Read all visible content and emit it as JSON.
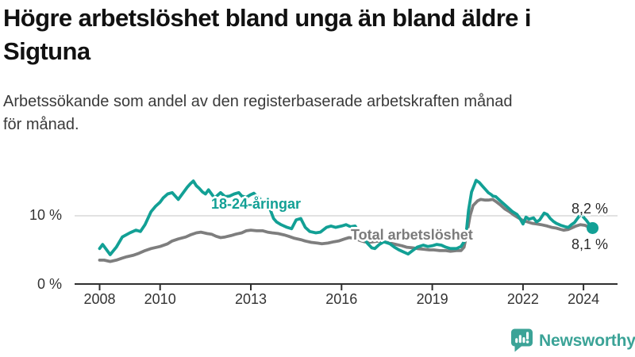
{
  "title": {
    "lines": [
      "Högre arbetslöshet bland unga än bland äldre i",
      "Sigtuna"
    ]
  },
  "subtitle": {
    "lines": [
      "Arbetssökande som andel av den registerbaserade arbetskraften månad",
      "för månad."
    ]
  },
  "footer": {
    "brand": "Newsworthy"
  },
  "colors": {
    "youth_line": "#12a095",
    "total_line": "#7e7e7e",
    "gridline": "#d9d9d9",
    "axis": "#2f2f2f",
    "tick_text": "#333333",
    "brand": "#3ba397"
  },
  "chart_data": {
    "type": "line",
    "title": "Högre arbetslöshet bland unga än bland äldre i Sigtuna",
    "subtitle": "Arbetssökande som andel av den registerbaserade arbetskraften månad för månad.",
    "x_axis": {
      "ticks": [
        2008,
        2010,
        2013,
        2016,
        2019,
        2022,
        2024
      ],
      "range": [
        2008,
        2024.4
      ]
    },
    "y_axis": {
      "labels": [
        "0 %",
        "10 %"
      ],
      "gridline_at": 10,
      "range": [
        0,
        16
      ],
      "unit": "%"
    },
    "legend_position": "inline-labels",
    "grid": "single-horizontal-line-at-10",
    "series": [
      {
        "name": "18-24-åringar",
        "color": "#12a095",
        "end_label": "8,2 %",
        "end_value": 8.2,
        "points": [
          [
            2008.0,
            5.2
          ],
          [
            2008.1,
            5.8
          ],
          [
            2008.35,
            4.3
          ],
          [
            2008.55,
            5.4
          ],
          [
            2008.75,
            6.9
          ],
          [
            2009.0,
            7.5
          ],
          [
            2009.2,
            7.9
          ],
          [
            2009.35,
            7.7
          ],
          [
            2009.5,
            8.7
          ],
          [
            2009.7,
            10.6
          ],
          [
            2009.85,
            11.4
          ],
          [
            2010.0,
            12.0
          ],
          [
            2010.1,
            12.6
          ],
          [
            2010.25,
            13.2
          ],
          [
            2010.4,
            13.4
          ],
          [
            2010.5,
            12.9
          ],
          [
            2010.6,
            12.4
          ],
          [
            2010.75,
            13.3
          ],
          [
            2010.9,
            14.2
          ],
          [
            2011.0,
            14.7
          ],
          [
            2011.1,
            15.1
          ],
          [
            2011.2,
            14.4
          ],
          [
            2011.3,
            14.0
          ],
          [
            2011.4,
            13.5
          ],
          [
            2011.5,
            13.2
          ],
          [
            2011.6,
            13.8
          ],
          [
            2011.7,
            13.2
          ],
          [
            2011.8,
            12.6
          ],
          [
            2011.9,
            13.0
          ],
          [
            2012.0,
            13.4
          ],
          [
            2012.15,
            12.8
          ],
          [
            2012.3,
            12.9
          ],
          [
            2012.45,
            13.2
          ],
          [
            2012.6,
            13.4
          ],
          [
            2012.7,
            12.9
          ],
          [
            2012.85,
            12.7
          ],
          [
            2013.0,
            13.1
          ],
          [
            2013.1,
            13.3
          ],
          [
            2013.25,
            12.7
          ],
          [
            2013.4,
            12.1
          ],
          [
            2013.5,
            11.6
          ],
          [
            2013.65,
            10.8
          ],
          [
            2013.75,
            9.6
          ],
          [
            2013.85,
            9.1
          ],
          [
            2014.0,
            8.7
          ],
          [
            2014.2,
            8.3
          ],
          [
            2014.35,
            8.1
          ],
          [
            2014.5,
            9.4
          ],
          [
            2014.65,
            9.6
          ],
          [
            2014.8,
            8.3
          ],
          [
            2014.95,
            7.7
          ],
          [
            2015.15,
            7.5
          ],
          [
            2015.3,
            7.6
          ],
          [
            2015.5,
            8.3
          ],
          [
            2015.65,
            8.5
          ],
          [
            2015.8,
            8.3
          ],
          [
            2016.0,
            8.5
          ],
          [
            2016.15,
            8.7
          ],
          [
            2016.3,
            8.4
          ],
          [
            2016.45,
            8.5
          ],
          [
            2016.55,
            7.8
          ],
          [
            2016.7,
            7.0
          ],
          [
            2016.85,
            6.0
          ],
          [
            2017.0,
            5.3
          ],
          [
            2017.1,
            5.2
          ],
          [
            2017.25,
            5.8
          ],
          [
            2017.4,
            6.2
          ],
          [
            2017.6,
            5.9
          ],
          [
            2017.75,
            5.4
          ],
          [
            2017.9,
            5.0
          ],
          [
            2018.05,
            4.7
          ],
          [
            2018.2,
            4.4
          ],
          [
            2018.35,
            4.9
          ],
          [
            2018.5,
            5.4
          ],
          [
            2018.7,
            5.7
          ],
          [
            2018.85,
            5.5
          ],
          [
            2019.0,
            5.6
          ],
          [
            2019.15,
            5.8
          ],
          [
            2019.3,
            5.7
          ],
          [
            2019.45,
            5.4
          ],
          [
            2019.6,
            5.2
          ],
          [
            2019.8,
            5.2
          ],
          [
            2019.95,
            5.5
          ],
          [
            2020.1,
            6.5
          ],
          [
            2020.2,
            10.8
          ],
          [
            2020.3,
            13.5
          ],
          [
            2020.4,
            14.6
          ],
          [
            2020.45,
            15.2
          ],
          [
            2020.55,
            14.9
          ],
          [
            2020.65,
            14.4
          ],
          [
            2020.75,
            13.9
          ],
          [
            2020.85,
            13.4
          ],
          [
            2020.95,
            13.1
          ],
          [
            2021.0,
            12.9
          ],
          [
            2021.1,
            12.8
          ],
          [
            2021.25,
            12.2
          ],
          [
            2021.4,
            11.6
          ],
          [
            2021.5,
            11.2
          ],
          [
            2021.65,
            10.6
          ],
          [
            2021.8,
            10.2
          ],
          [
            2021.9,
            9.6
          ],
          [
            2022.0,
            8.8
          ],
          [
            2022.1,
            9.8
          ],
          [
            2022.2,
            9.5
          ],
          [
            2022.35,
            9.7
          ],
          [
            2022.45,
            9.1
          ],
          [
            2022.55,
            9.4
          ],
          [
            2022.7,
            10.4
          ],
          [
            2022.8,
            10.2
          ],
          [
            2022.9,
            9.6
          ],
          [
            2023.0,
            9.2
          ],
          [
            2023.1,
            8.9
          ],
          [
            2023.25,
            8.6
          ],
          [
            2023.4,
            8.4
          ],
          [
            2023.5,
            8.3
          ],
          [
            2023.6,
            8.7
          ],
          [
            2023.7,
            9.0
          ],
          [
            2023.8,
            9.6
          ],
          [
            2023.9,
            10.2
          ],
          [
            2024.0,
            9.8
          ],
          [
            2024.1,
            9.3
          ],
          [
            2024.2,
            8.7
          ],
          [
            2024.3,
            8.2
          ]
        ]
      },
      {
        "name": "Total arbetslöshet",
        "color": "#7e7e7e",
        "end_label": "8,1 %",
        "end_value": 8.1,
        "points": [
          [
            2008.0,
            3.5
          ],
          [
            2008.15,
            3.5
          ],
          [
            2008.35,
            3.3
          ],
          [
            2008.55,
            3.5
          ],
          [
            2008.75,
            3.8
          ],
          [
            2008.9,
            4.0
          ],
          [
            2009.1,
            4.2
          ],
          [
            2009.3,
            4.5
          ],
          [
            2009.5,
            4.9
          ],
          [
            2009.7,
            5.2
          ],
          [
            2010.0,
            5.5
          ],
          [
            2010.25,
            5.9
          ],
          [
            2010.4,
            6.3
          ],
          [
            2010.6,
            6.6
          ],
          [
            2010.85,
            6.9
          ],
          [
            2011.0,
            7.2
          ],
          [
            2011.2,
            7.5
          ],
          [
            2011.35,
            7.6
          ],
          [
            2011.55,
            7.4
          ],
          [
            2011.7,
            7.3
          ],
          [
            2011.85,
            7.0
          ],
          [
            2012.0,
            6.8
          ],
          [
            2012.15,
            6.9
          ],
          [
            2012.35,
            7.1
          ],
          [
            2012.5,
            7.3
          ],
          [
            2012.7,
            7.5
          ],
          [
            2012.85,
            7.8
          ],
          [
            2013.0,
            7.9
          ],
          [
            2013.2,
            7.8
          ],
          [
            2013.4,
            7.8
          ],
          [
            2013.55,
            7.6
          ],
          [
            2013.7,
            7.5
          ],
          [
            2013.9,
            7.4
          ],
          [
            2014.1,
            7.2
          ],
          [
            2014.25,
            7.0
          ],
          [
            2014.45,
            6.7
          ],
          [
            2014.65,
            6.5
          ],
          [
            2014.8,
            6.3
          ],
          [
            2015.0,
            6.1
          ],
          [
            2015.2,
            6.0
          ],
          [
            2015.35,
            5.9
          ],
          [
            2015.55,
            6.0
          ],
          [
            2015.75,
            6.2
          ],
          [
            2015.9,
            6.3
          ],
          [
            2016.1,
            6.6
          ],
          [
            2016.25,
            6.8
          ],
          [
            2016.4,
            6.7
          ],
          [
            2016.6,
            6.4
          ],
          [
            2016.75,
            6.2
          ],
          [
            2016.9,
            6.1
          ],
          [
            2017.05,
            6.2
          ],
          [
            2017.25,
            6.3
          ],
          [
            2017.4,
            6.2
          ],
          [
            2017.6,
            6.0
          ],
          [
            2017.8,
            5.8
          ],
          [
            2018.0,
            5.6
          ],
          [
            2018.15,
            5.4
          ],
          [
            2018.35,
            5.3
          ],
          [
            2018.5,
            5.2
          ],
          [
            2018.7,
            5.1
          ],
          [
            2018.9,
            5.0
          ],
          [
            2019.05,
            5.0
          ],
          [
            2019.25,
            4.9
          ],
          [
            2019.45,
            4.9
          ],
          [
            2019.6,
            4.8
          ],
          [
            2019.8,
            4.9
          ],
          [
            2019.95,
            4.9
          ],
          [
            2020.05,
            5.4
          ],
          [
            2020.15,
            7.5
          ],
          [
            2020.25,
            10.0
          ],
          [
            2020.35,
            11.5
          ],
          [
            2020.5,
            12.2
          ],
          [
            2020.6,
            12.4
          ],
          [
            2020.75,
            12.3
          ],
          [
            2020.85,
            12.3
          ],
          [
            2021.0,
            12.4
          ],
          [
            2021.1,
            12.1
          ],
          [
            2021.25,
            11.6
          ],
          [
            2021.4,
            11.0
          ],
          [
            2021.55,
            10.6
          ],
          [
            2021.7,
            10.1
          ],
          [
            2021.85,
            9.7
          ],
          [
            2022.0,
            9.3
          ],
          [
            2022.15,
            9.1
          ],
          [
            2022.3,
            8.9
          ],
          [
            2022.45,
            8.8
          ],
          [
            2022.6,
            8.7
          ],
          [
            2022.8,
            8.5
          ],
          [
            2022.95,
            8.3
          ],
          [
            2023.1,
            8.2
          ],
          [
            2023.25,
            8.0
          ],
          [
            2023.35,
            7.9
          ],
          [
            2023.5,
            8.0
          ],
          [
            2023.6,
            8.2
          ],
          [
            2023.75,
            8.5
          ],
          [
            2023.9,
            8.7
          ],
          [
            2024.05,
            8.6
          ],
          [
            2024.15,
            8.4
          ],
          [
            2024.3,
            8.1
          ]
        ]
      }
    ]
  }
}
